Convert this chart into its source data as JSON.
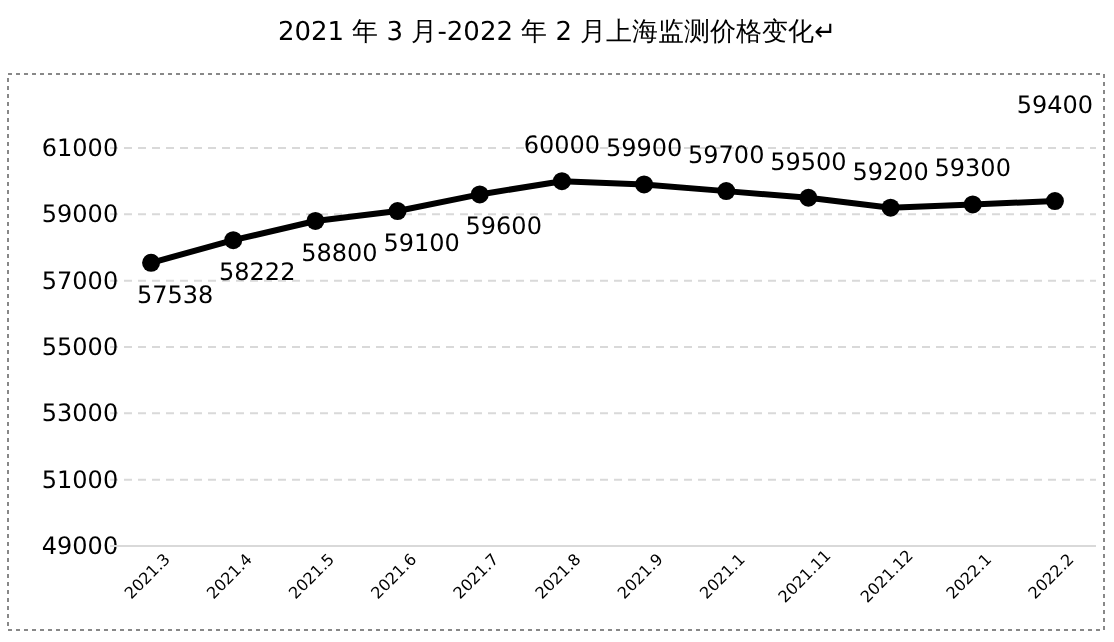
{
  "chart_data": {
    "type": "line",
    "title": "2021 年 3 月-2022 年 2 月上海监测价格变化↵",
    "categories": [
      "2021.3",
      "2021.4",
      "2021.5",
      "2021.6",
      "2021.7",
      "2021.8",
      "2021.9",
      "2021.1",
      "2021.11",
      "2021.12",
      "2022.1",
      "2022.2"
    ],
    "series": [
      {
        "color": "#000000",
        "values": [
          57538,
          58222,
          58800,
          59100,
          59600,
          60000,
          59900,
          59700,
          59500,
          59200,
          59300,
          59400
        ]
      }
    ],
    "ylim": [
      49000,
      61000
    ],
    "yticks": [
      49000,
      51000,
      53000,
      55000,
      57000,
      59000,
      61000
    ],
    "grid": "y",
    "marker": "circle",
    "line_style": "solid",
    "data_labels": true
  }
}
